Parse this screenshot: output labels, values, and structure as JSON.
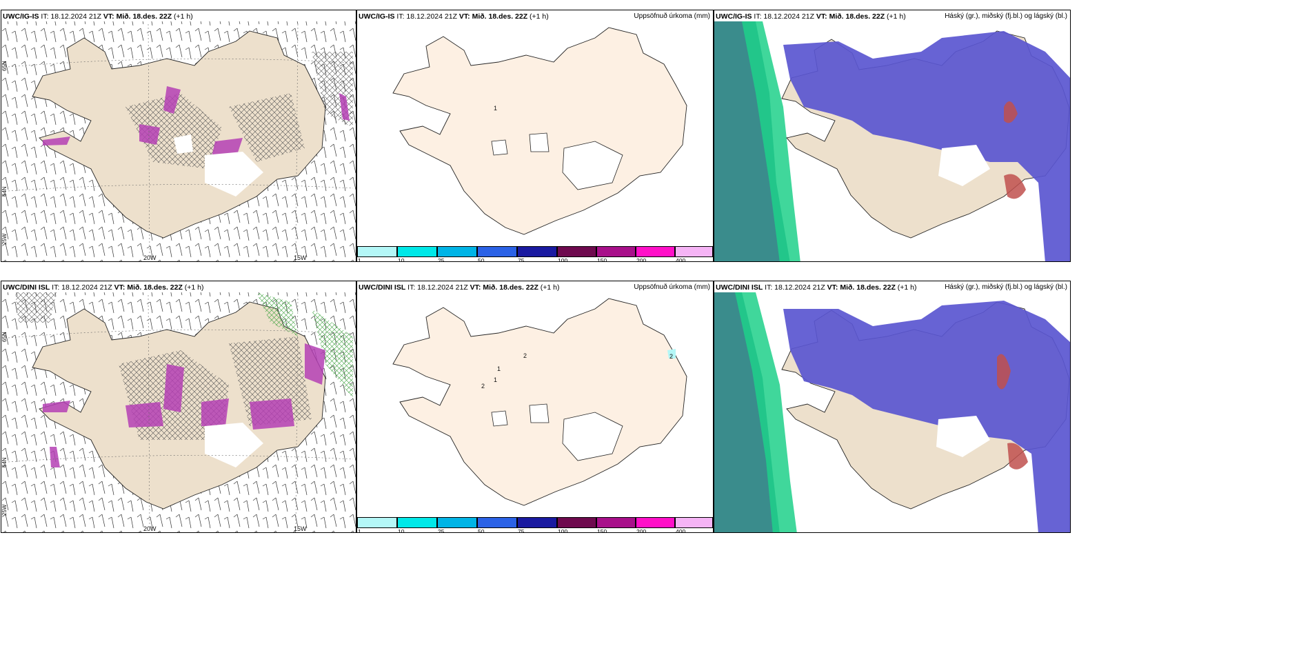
{
  "header": {
    "it": "IT: 18.12.2024 21Z",
    "vt_label": "VT:",
    "vt_value": "Mið. 18.des. 22Z",
    "offset": "(+1 h)"
  },
  "rows": [
    {
      "model": "UWC/IG-IS"
    },
    {
      "model": "UWC/DINI ISL"
    }
  ],
  "precip_title": "Uppsöfnuð úrkoma (mm)",
  "cloud_title": "Háský (gr.), miðský (fj.bl.) og lágský (bl.)",
  "axis_labels": {
    "lon_20": "20W",
    "lon_15": "15W",
    "lat_65": "65N",
    "lat_64": "64N",
    "lat_25": "25W"
  },
  "colorbar": {
    "ticks": [
      "1",
      "10",
      "25",
      "50",
      "75",
      "100",
      "150",
      "200",
      "400"
    ],
    "colors": [
      "#b4f7f7",
      "#00e8e8",
      "#00b4e6",
      "#2b62e6",
      "#1a1aa0",
      "#6e0a4e",
      "#a8108a",
      "#ff10c8",
      "#f5b4f5"
    ]
  },
  "colors": {
    "land": "#ede0cc",
    "land_light": "#fdf0e3",
    "cloud_high": "#5a56d0",
    "cloud_low_green": "#1fd08a",
    "cloud_mid_teal": "#3a8c8c",
    "precip_purple": "#b440b4"
  },
  "precip_labels_top": [
    "1"
  ],
  "precip_labels_bottom": [
    "1",
    "2",
    "1",
    "2",
    "2"
  ]
}
